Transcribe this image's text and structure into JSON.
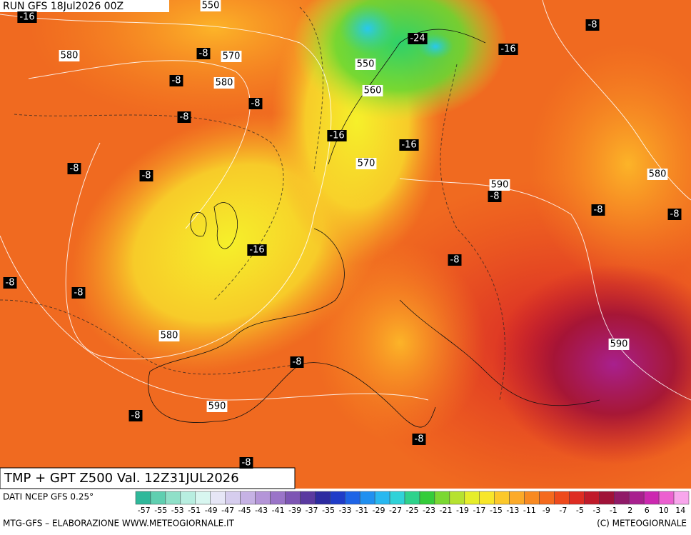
{
  "header": {
    "run": "RUN GFS 18Jul2026 00Z",
    "title": "TMP + GPT Z500 Val. 12Z31JUL2026",
    "source": "DATI NCEP GFS 0.25°",
    "credit": "MTG-GFS – ELABORAZIONE WWW.METEOGIORNALE.IT",
    "copyright": "(C) METEOGIORNALE"
  },
  "map": {
    "temp_labels": [
      -16,
      -8,
      -8,
      -8,
      -8,
      -24,
      -16,
      -8,
      -16,
      -16,
      -8,
      -8,
      -8,
      -8,
      -8,
      -16,
      -8,
      -8,
      -8,
      -8,
      -8,
      -8,
      -8
    ],
    "height_labels": [
      550,
      580,
      570,
      580,
      550,
      560,
      570,
      590,
      580,
      580,
      590,
      590
    ]
  },
  "legend": {
    "labels": [
      -57,
      -55,
      -53,
      -51,
      -49,
      -47,
      -45,
      -43,
      -41,
      -39,
      -37,
      -35,
      -33,
      -31,
      -29,
      -27,
      -25,
      -23,
      -21,
      -19,
      -17,
      -15,
      -13,
      -11,
      -9,
      -7,
      -5,
      -3,
      -1,
      2,
      6,
      10,
      14
    ],
    "colors": [
      "#2fb89a",
      "#5fcfb0",
      "#8fe0c8",
      "#b8eee0",
      "#d8f6f0",
      "#e6e6f6",
      "#d6cdee",
      "#c6b2e4",
      "#b495d8",
      "#9a74c8",
      "#7d55b4",
      "#5a3aa0",
      "#2d2ba0",
      "#1f3cc8",
      "#1e64e6",
      "#2090f0",
      "#28b8f0",
      "#30d2d8",
      "#2ed28c",
      "#34cc3a",
      "#7ad832",
      "#b6e230",
      "#e6ee2a",
      "#f8e62a",
      "#fcc82a",
      "#fcaa28",
      "#f88a22",
      "#f46a1e",
      "#ee4a1c",
      "#de2c22",
      "#c01a2a",
      "#a01238",
      "#901a68",
      "#a8208e",
      "#cc28b0",
      "#ec60d0",
      "#f8a6ec"
    ]
  }
}
